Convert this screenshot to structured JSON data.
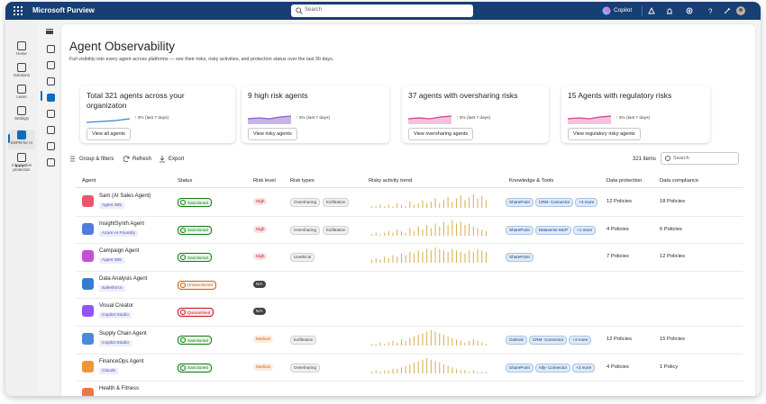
{
  "header": {
    "app": "Microsoft Purview",
    "search": "Search",
    "copilot": "Copilot"
  },
  "nav": [
    "Home",
    "Solutions",
    "Learn",
    "Settings",
    "DSPM for AI",
    "Information protection"
  ],
  "page": {
    "title": "Agent Observability",
    "subtitle": "Full visibility into every agent across platforms — see their risks, risky activities, and protection status over the last 30 days."
  },
  "cards": [
    {
      "title": "Total 321 agents across your organizaton",
      "change": "↑ 3% (last 7 days)",
      "button": "View all agents"
    },
    {
      "title": "9 high risk agents",
      "change": "↑ 3% (last 7 days)",
      "button": "View risky agents"
    },
    {
      "title": "37 agents with oversharing risks",
      "change": "↑ 3% (last 7 days)",
      "button": "View oversharing agents"
    },
    {
      "title": "15 Agents with regulatory risks",
      "change": "↑ 3% (last 7 days)",
      "button": "View regulatory risky agents"
    }
  ],
  "toolbar": {
    "group": "Group & filters",
    "refresh": "Refresh",
    "export": "Export",
    "count": "321 items",
    "search": "Search"
  },
  "table": {
    "columns": [
      "Agent",
      "Status",
      "Risk level",
      "Risk types",
      "Risky activity trend",
      "Knowledge & Tools",
      "Data protection",
      "Data compliance"
    ],
    "rows": [
      {
        "agent": "Sam (AI Sales Agent)",
        "platform": "Agent 365",
        "icon_color": "#e8455a",
        "status": "Sanctioned",
        "status_color": "#107c10",
        "risk_level": "High",
        "risk_color": "#c50f1f",
        "risk_types": [
          "Oversharing",
          "Exfiltration"
        ],
        "trend": [
          1,
          1,
          2,
          1,
          2,
          1,
          3,
          2,
          1,
          4,
          2,
          3,
          5,
          3,
          4,
          6,
          3,
          5,
          7,
          4,
          6,
          8,
          5,
          7,
          9,
          6,
          8,
          5
        ],
        "tools": [
          "SharePoint",
          "CRM- Connector",
          "+3 more"
        ],
        "data_protection": "12 Policies",
        "data_compliance": "18 Policies"
      },
      {
        "agent": "InsightSynth Agent",
        "platform": "Azure AI Foundry",
        "icon_color": "#3b6fd8",
        "status": "Sanctioned",
        "status_color": "#107c10",
        "risk_level": "High",
        "risk_color": "#c50f1f",
        "risk_types": [
          "Oversharing",
          "Exfiltration"
        ],
        "trend": [
          1,
          2,
          1,
          2,
          3,
          2,
          4,
          3,
          2,
          5,
          3,
          6,
          4,
          7,
          5,
          8,
          6,
          9,
          7,
          10,
          8,
          9,
          7,
          8,
          6,
          5,
          4,
          3
        ],
        "tools": [
          "SharePoint",
          "Dataverse MCP",
          "+1 more"
        ],
        "data_protection": "4 Policies",
        "data_compliance": "6 Policies"
      },
      {
        "agent": "Campaign Agent",
        "platform": "Agent 365",
        "icon_color": "#c43ad6",
        "status": "Sanctioned",
        "status_color": "#107c10",
        "risk_level": "High",
        "risk_color": "#c50f1f",
        "risk_types": [
          "Unethical"
        ],
        "trend": [
          2,
          3,
          2,
          4,
          3,
          5,
          4,
          6,
          5,
          7,
          6,
          8,
          7,
          9,
          8,
          10,
          9,
          8,
          7,
          9,
          8,
          7,
          6,
          8,
          7,
          9,
          8,
          7
        ],
        "tools": [
          "SharePoint"
        ],
        "data_protection": "7 Policies",
        "data_compliance": "12 Policies"
      },
      {
        "agent": "Data Analysis Agent",
        "platform": "Salesforce",
        "icon_color": "#1f6fc5",
        "status": "Unsanctioned",
        "status_color": "#d4600a",
        "risk_level": "N/A",
        "risk_color": "#424242"
      },
      {
        "agent": "Visual Creator",
        "platform": "Copilot Studio",
        "icon_color": "#8a3ffc",
        "status": "Quarantined",
        "status_color": "#c50f1f",
        "risk_level": "N/A",
        "risk_color": "#424242"
      },
      {
        "agent": "Supply Chain Agent",
        "platform": "Copilot Studio",
        "icon_color": "#3a7bd5",
        "status": "Sanctioned",
        "status_color": "#107c10",
        "risk_level": "Medium",
        "risk_color": "#d4600a",
        "risk_types": [
          "Exfiltration"
        ],
        "trend": [
          1,
          1,
          2,
          1,
          2,
          3,
          2,
          4,
          3,
          5,
          6,
          7,
          8,
          9,
          10,
          9,
          8,
          7,
          6,
          5,
          4,
          3,
          2,
          3,
          4,
          3,
          2,
          1
        ],
        "tools": [
          "Outlook",
          "CRM- Connector",
          "+3 more"
        ],
        "data_protection": "12 Policies",
        "data_compliance": "15 Policies"
      },
      {
        "agent": "FinanceOps Agent",
        "platform": "Claude",
        "icon_color": "#f08a24",
        "status": "Sanctioned",
        "status_color": "#107c10",
        "risk_level": "Medium",
        "risk_color": "#d4600a",
        "risk_types": [
          "Oversharing"
        ],
        "trend": [
          1,
          2,
          1,
          2,
          2,
          3,
          3,
          4,
          5,
          6,
          7,
          8,
          9,
          10,
          9,
          8,
          7,
          6,
          5,
          4,
          3,
          2,
          2,
          1,
          2,
          1,
          1,
          1
        ],
        "tools": [
          "SharePoint",
          "Ally- Connector",
          "+3 more"
        ],
        "data_protection": "4 Policies",
        "data_compliance": "1 Policy"
      },
      {
        "agent": "Health & Fitness",
        "icon_color": "#e86a2c"
      }
    ]
  }
}
